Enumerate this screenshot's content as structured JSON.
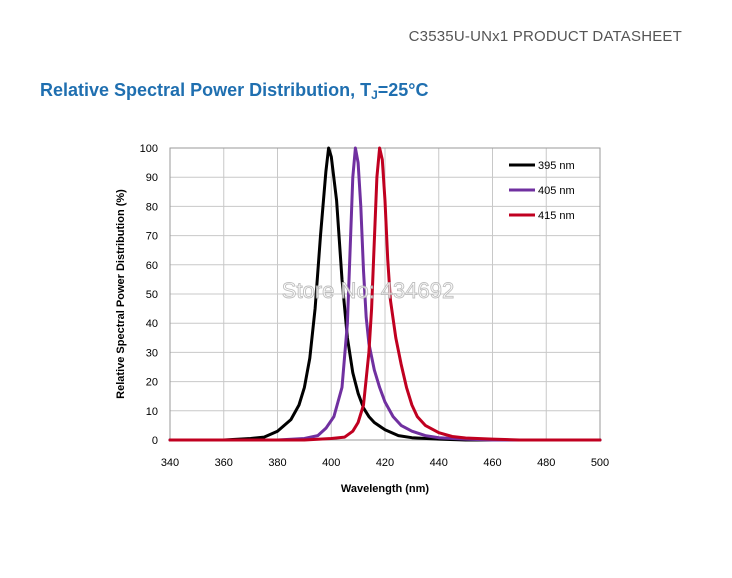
{
  "doc_header": "C3535U-UNx1 PRODUCT DATASHEET",
  "section_title": {
    "main": "Relative Spectral Power Distribution, T",
    "subscript": "J",
    "suffix": "=25°C"
  },
  "watermark": "Store No: 434692",
  "colors": {
    "s395": "#000000",
    "s405": "#7030a0",
    "s415": "#c00020",
    "grid": "#c8c8c8"
  },
  "chart_data": {
    "type": "line",
    "title": "",
    "xlabel": "Wavelength (nm)",
    "ylabel": "Relative Spectral Power Distribution (%)",
    "xlim": [
      340,
      500
    ],
    "ylim": [
      0,
      100
    ],
    "xticks": [
      340,
      360,
      380,
      400,
      420,
      440,
      460,
      480,
      500
    ],
    "yticks": [
      0,
      10,
      20,
      30,
      40,
      50,
      60,
      70,
      80,
      90,
      100
    ],
    "grid": true,
    "legend_position": "top-right",
    "series": [
      {
        "name": "395 nm",
        "color": "#000000",
        "points": [
          [
            340,
            0
          ],
          [
            360,
            0
          ],
          [
            370,
            0.5
          ],
          [
            375,
            1
          ],
          [
            380,
            3
          ],
          [
            385,
            7
          ],
          [
            388,
            12
          ],
          [
            390,
            18
          ],
          [
            392,
            28
          ],
          [
            394,
            45
          ],
          [
            396,
            70
          ],
          [
            398,
            92
          ],
          [
            399,
            100
          ],
          [
            400,
            97
          ],
          [
            402,
            82
          ],
          [
            404,
            55
          ],
          [
            406,
            35
          ],
          [
            408,
            23
          ],
          [
            410,
            16
          ],
          [
            412,
            11
          ],
          [
            414,
            8
          ],
          [
            416,
            6
          ],
          [
            420,
            3.5
          ],
          [
            425,
            1.5
          ],
          [
            430,
            0.8
          ],
          [
            440,
            0.3
          ],
          [
            450,
            0
          ],
          [
            500,
            0
          ]
        ]
      },
      {
        "name": "405 nm",
        "color": "#7030a0",
        "points": [
          [
            340,
            0
          ],
          [
            380,
            0
          ],
          [
            390,
            0.5
          ],
          [
            395,
            1.5
          ],
          [
            398,
            4
          ],
          [
            401,
            8
          ],
          [
            404,
            18
          ],
          [
            406,
            40
          ],
          [
            407,
            65
          ],
          [
            408,
            90
          ],
          [
            409,
            100
          ],
          [
            410,
            95
          ],
          [
            411,
            80
          ],
          [
            412,
            58
          ],
          [
            413,
            42
          ],
          [
            414,
            33
          ],
          [
            416,
            24
          ],
          [
            418,
            18
          ],
          [
            420,
            13
          ],
          [
            423,
            8
          ],
          [
            426,
            5
          ],
          [
            430,
            3
          ],
          [
            435,
            1.5
          ],
          [
            440,
            0.8
          ],
          [
            450,
            0.3
          ],
          [
            460,
            0
          ],
          [
            500,
            0
          ]
        ]
      },
      {
        "name": "415 nm",
        "color": "#c00020",
        "points": [
          [
            340,
            0
          ],
          [
            390,
            0
          ],
          [
            400,
            0.5
          ],
          [
            405,
            1
          ],
          [
            408,
            3
          ],
          [
            410,
            6
          ],
          [
            412,
            12
          ],
          [
            414,
            30
          ],
          [
            415,
            45
          ],
          [
            416,
            68
          ],
          [
            417,
            90
          ],
          [
            418,
            100
          ],
          [
            419,
            96
          ],
          [
            420,
            82
          ],
          [
            421,
            62
          ],
          [
            422,
            48
          ],
          [
            424,
            35
          ],
          [
            426,
            26
          ],
          [
            428,
            18
          ],
          [
            430,
            12
          ],
          [
            432,
            8
          ],
          [
            435,
            5
          ],
          [
            440,
            2.5
          ],
          [
            445,
            1.2
          ],
          [
            450,
            0.7
          ],
          [
            460,
            0.3
          ],
          [
            470,
            0
          ],
          [
            500,
            0
          ]
        ]
      }
    ]
  }
}
